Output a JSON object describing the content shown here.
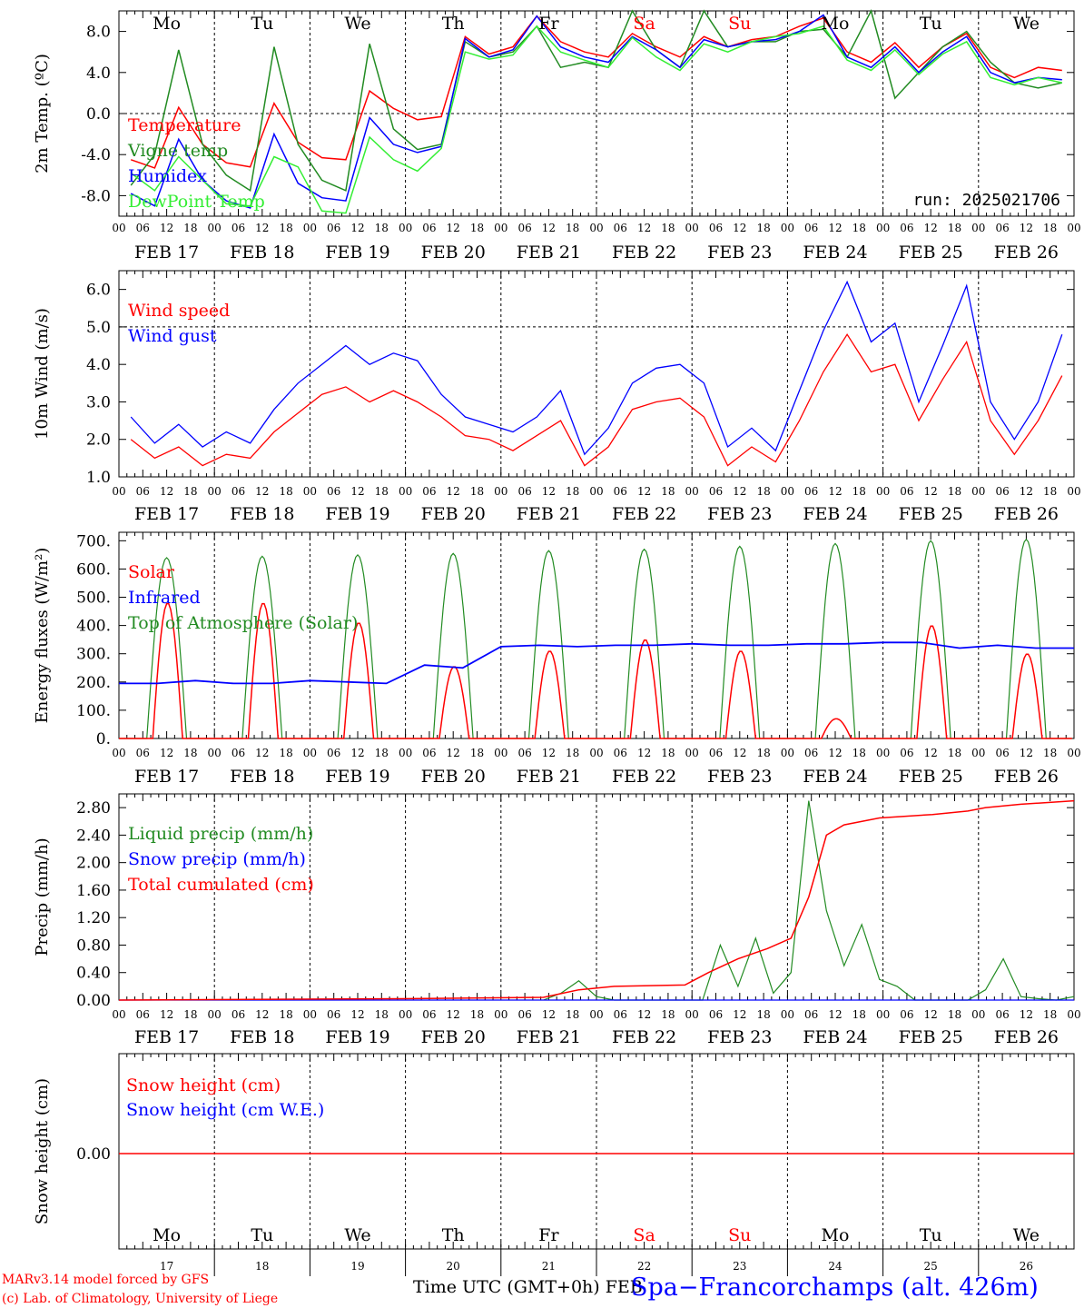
{
  "days": [
    "Mo",
    "Tu",
    "We",
    "Th",
    "Fr",
    "Sa",
    "Su",
    "Mo",
    "Tu",
    "We"
  ],
  "day_colors": [
    "#000000",
    "#000000",
    "#000000",
    "#000000",
    "#000000",
    "#ff0000",
    "#ff0000",
    "#000000",
    "#000000",
    "#000000"
  ],
  "dates": [
    "FEB 17",
    "FEB 18",
    "FEB 19",
    "FEB 20",
    "FEB 21",
    "FEB 22",
    "FEB 23",
    "FEB 24",
    "FEB 25",
    "FEB 26"
  ],
  "day_numbers": [
    "17",
    "18",
    "19",
    "20",
    "21",
    "22",
    "23",
    "24",
    "25",
    "26"
  ],
  "hour_ticks": [
    "00",
    "06",
    "12",
    "18"
  ],
  "hour_end": "00",
  "run_label": "run: 2025021706",
  "footer": {
    "model_line": "MARv3.14 model forced by GFS",
    "credit_line": "(c) Lab. of Climatology, University of Liege",
    "time_axis": "Time UTC (GMT+0h) FEB",
    "station": "Spa−Francorchamps (alt. 426m)"
  },
  "colors": {
    "red": "#ff0000",
    "green": "#228b22",
    "blue": "#0000ff",
    "lightgreen": "#33ee33"
  },
  "chart_data": [
    {
      "type": "line",
      "id": "temp",
      "ylabel": "2m Temp. (ºC)",
      "ylim": [
        -10,
        10
      ],
      "yticks": [
        "8.0",
        "4.0",
        "0.0",
        "-4.0",
        "-8.0"
      ],
      "ytick_values": [
        8,
        4,
        0,
        -4,
        -8
      ],
      "refline": 0,
      "x_hours": [
        0,
        6,
        12,
        18,
        24,
        30,
        36,
        42,
        48,
        54,
        60,
        66,
        72,
        78,
        84,
        90,
        96,
        102,
        108,
        114,
        120,
        126,
        132,
        138,
        144,
        150,
        156,
        162,
        168,
        174,
        180,
        186,
        192,
        198,
        204,
        210,
        216,
        222,
        228,
        234
      ],
      "series": [
        {
          "name": "Temperature",
          "color": "red",
          "values": [
            -4.5,
            -5.3,
            0.6,
            -3,
            -4.8,
            -5.2,
            1,
            -2.8,
            -4.3,
            -4.5,
            2.2,
            0.5,
            -0.6,
            -0.3,
            7.5,
            5.8,
            6.5,
            9.5,
            7,
            6,
            5.5,
            7.8,
            6.5,
            5.5,
            7.5,
            6.5,
            7.2,
            7.5,
            8.5,
            9.3,
            6,
            5,
            6.9,
            4.5,
            6.5,
            7.8,
            4.5,
            3.5,
            4.5,
            4.2
          ]
        },
        {
          "name": "Vigne temp",
          "color": "green",
          "values": [
            -7,
            -4,
            6.2,
            -3,
            -6,
            -7.5,
            6.5,
            -3,
            -6.5,
            -7.5,
            6.8,
            -1.5,
            -3.5,
            -3,
            7,
            5.5,
            6,
            8.5,
            4.5,
            5,
            4.5,
            10,
            6.2,
            4.5,
            10,
            6.5,
            7,
            7,
            8,
            8.2,
            5.5,
            10,
            1.5,
            4,
            6.5,
            8,
            5,
            3,
            2.5,
            3
          ]
        },
        {
          "name": "Humidex",
          "color": "blue",
          "values": [
            -7.8,
            -9,
            -2.5,
            -6.5,
            -8.5,
            -9.2,
            -2,
            -6.8,
            -8.2,
            -8.5,
            -0.4,
            -3,
            -3.8,
            -3.2,
            7.3,
            5.5,
            6.2,
            9.5,
            6.5,
            5.5,
            5,
            7.5,
            6.2,
            4.5,
            7.2,
            6.5,
            7,
            7.2,
            8,
            9.6,
            5.5,
            4.5,
            6.5,
            4,
            6,
            7.5,
            4,
            3,
            3.5,
            3.3
          ]
        },
        {
          "name": "DewPoint Temp",
          "color": "lightgreen",
          "values": [
            -5.8,
            -7.5,
            -4.2,
            -6.5,
            -8.8,
            -9,
            -4.2,
            -5.2,
            -9.5,
            -9.7,
            -2.3,
            -4.5,
            -5.6,
            -3.4,
            6,
            5.3,
            5.7,
            8.5,
            6,
            5.2,
            4.5,
            7.4,
            5.5,
            4.2,
            6.8,
            6,
            7,
            7.5,
            7.8,
            8.5,
            5.2,
            4.2,
            6.2,
            3.8,
            5.8,
            7,
            3.5,
            2.8,
            3.5,
            3
          ]
        }
      ]
    },
    {
      "type": "line",
      "id": "wind",
      "ylabel": "10m Wind (m/s)",
      "ylim": [
        1,
        6.5
      ],
      "yticks": [
        "6.0",
        "5.0",
        "4.0",
        "3.0",
        "2.0",
        "1.0"
      ],
      "ytick_values": [
        6,
        5,
        4,
        3,
        2,
        1
      ],
      "refline": 5,
      "x_hours": [
        0,
        6,
        12,
        18,
        24,
        30,
        36,
        42,
        48,
        54,
        60,
        66,
        72,
        78,
        84,
        90,
        96,
        102,
        108,
        114,
        120,
        126,
        132,
        138,
        144,
        150,
        156,
        162,
        168,
        174,
        180,
        186,
        192,
        198,
        204,
        210,
        216,
        222,
        228,
        234
      ],
      "series": [
        {
          "name": "Wind speed",
          "color": "red",
          "values": [
            2,
            1.5,
            1.8,
            1.3,
            1.6,
            1.5,
            2.2,
            2.7,
            3.2,
            3.4,
            3,
            3.3,
            3,
            2.6,
            2.1,
            2,
            1.7,
            2.1,
            2.5,
            1.3,
            1.8,
            2.8,
            3,
            3.1,
            2.6,
            1.3,
            1.8,
            1.4,
            2.5,
            3.8,
            4.8,
            3.8,
            4,
            2.5,
            3.6,
            4.6,
            2.5,
            1.6,
            2.5,
            3.7
          ]
        },
        {
          "name": "Wind gust",
          "color": "blue",
          "values": [
            2.6,
            1.9,
            2.4,
            1.8,
            2.2,
            1.9,
            2.8,
            3.5,
            4,
            4.5,
            4,
            4.3,
            4.1,
            3.2,
            2.6,
            2.4,
            2.2,
            2.6,
            3.3,
            1.6,
            2.3,
            3.5,
            3.9,
            4,
            3.5,
            1.8,
            2.3,
            1.7,
            3.3,
            4.9,
            6.2,
            4.6,
            5.1,
            3,
            4.5,
            6.1,
            3,
            2,
            3,
            4.8
          ]
        }
      ]
    },
    {
      "type": "line",
      "id": "energy",
      "ylabel": "Energy fluxes (W/m²)",
      "ylim": [
        0,
        730
      ],
      "yticks": [
        "700.",
        "600.",
        "500.",
        "400.",
        "300.",
        "200.",
        "100.",
        "0."
      ],
      "ytick_values": [
        700,
        600,
        500,
        400,
        300,
        200,
        100,
        0
      ],
      "series": [
        {
          "name": "Solar",
          "color": "red",
          "day_peaks": [
            480,
            480,
            410,
            255,
            310,
            350,
            310,
            70,
            400,
            300
          ]
        },
        {
          "name": "Infrared",
          "color": "blue",
          "values": [
            195,
            195,
            205,
            195,
            195,
            205,
            200,
            195,
            260,
            250,
            325,
            330,
            325,
            330,
            330,
            335,
            330,
            330,
            335,
            335,
            340,
            340,
            320,
            330,
            320,
            320
          ],
          "x_hours": [
            0,
            12,
            24,
            36,
            48,
            60,
            72,
            84,
            96,
            108,
            120,
            132,
            144,
            156,
            168,
            180,
            192,
            204,
            216,
            228,
            240,
            252,
            264,
            276,
            288,
            300
          ]
        },
        {
          "name": "Top of Atmosphere (Solar)",
          "color": "green",
          "day_peaks": [
            640,
            645,
            650,
            655,
            665,
            670,
            680,
            690,
            700,
            705
          ]
        }
      ]
    },
    {
      "type": "line",
      "id": "precip",
      "ylabel": "Precip (mm/h)",
      "ylim": [
        0,
        3.0
      ],
      "yticks": [
        "2.80",
        "2.40",
        "2.00",
        "1.60",
        "1.20",
        "0.80",
        "0.40",
        "0.00"
      ],
      "ytick_values": [
        2.8,
        2.4,
        2.0,
        1.6,
        1.2,
        0.8,
        0.4,
        0
      ],
      "x_hours": [
        0,
        24,
        48,
        72,
        96,
        120,
        144,
        156,
        162,
        168,
        174,
        180,
        186,
        192,
        198,
        204,
        210,
        216,
        222,
        228,
        234,
        240,
        246,
        252,
        258,
        264,
        270,
        276,
        282,
        288,
        294,
        300,
        306,
        312,
        318,
        324,
        330,
        336,
        342,
        348,
        354,
        360,
        366,
        372,
        378,
        384,
        390,
        396,
        402,
        408,
        414,
        420,
        426,
        432,
        438,
        444,
        450,
        456,
        462,
        468,
        474,
        480,
        486,
        492,
        498,
        504,
        510,
        516,
        522,
        528,
        534,
        540
      ],
      "series": [
        {
          "name": "Liquid precip (mm/h)",
          "color": "green",
          "sparse": [
            [
              144,
              0
            ],
            [
              150,
              0.1
            ],
            [
              156,
              0.28
            ],
            [
              162,
              0.05
            ],
            [
              168,
              0
            ],
            [
              174,
              0
            ],
            [
              180,
              0
            ],
            [
              186,
              0
            ],
            [
              192,
              0
            ],
            [
              198,
              0
            ],
            [
              204,
              0.8
            ],
            [
              210,
              0.2
            ],
            [
              216,
              0.9
            ],
            [
              222,
              0.1
            ],
            [
              228,
              0.4
            ],
            [
              234,
              2.9
            ],
            [
              240,
              1.3
            ],
            [
              246,
              0.5
            ],
            [
              252,
              1.1
            ],
            [
              258,
              0.3
            ],
            [
              264,
              0.2
            ],
            [
              270,
              0
            ],
            [
              276,
              0
            ],
            [
              282,
              0
            ],
            [
              288,
              0
            ],
            [
              294,
              0.15
            ],
            [
              300,
              0.6
            ],
            [
              306,
              0.05
            ],
            [
              312,
              0.02
            ],
            [
              318,
              0
            ],
            [
              324,
              0.05
            ]
          ]
        },
        {
          "name": "Snow precip (mm/h)",
          "color": "blue",
          "values_zero": true
        },
        {
          "name": "Total cumulated (cm)",
          "color": "red",
          "sparse": [
            [
              0,
              0
            ],
            [
              96,
              0.02
            ],
            [
              120,
              0.03
            ],
            [
              144,
              0.04
            ],
            [
              156,
              0.15
            ],
            [
              168,
              0.2
            ],
            [
              192,
              0.22
            ],
            [
              200,
              0.4
            ],
            [
              210,
              0.6
            ],
            [
              220,
              0.75
            ],
            [
              228,
              0.9
            ],
            [
              234,
              1.5
            ],
            [
              240,
              2.4
            ],
            [
              246,
              2.55
            ],
            [
              258,
              2.65
            ],
            [
              276,
              2.7
            ],
            [
              288,
              2.75
            ],
            [
              294,
              2.8
            ],
            [
              306,
              2.85
            ],
            [
              324,
              2.9
            ]
          ]
        }
      ]
    },
    {
      "type": "line",
      "id": "snow",
      "ylabel": "Snow height (cm)",
      "yticks": [
        "0.00"
      ],
      "ytick_values": [
        0
      ],
      "series": [
        {
          "name": "Snow height (cm)",
          "color": "red",
          "value": 0
        },
        {
          "name": "Snow height (cm W.E.)",
          "color": "blue",
          "value": 0
        }
      ]
    }
  ]
}
